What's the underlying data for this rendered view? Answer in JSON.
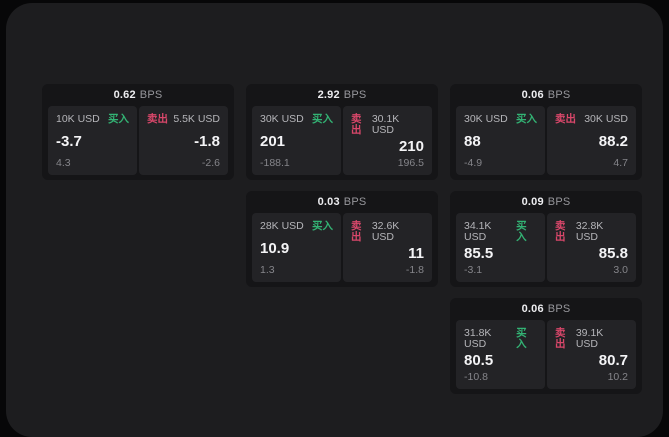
{
  "labels": {
    "bps_unit": "BPS",
    "buy": "买入",
    "sell": "卖出"
  },
  "colors": {
    "page_background": "#070708",
    "container_background": "#1d1d1f",
    "card_background": "#151517",
    "panel_background": "#232326",
    "buy_green": "#33b374",
    "sell_red": "#d9476a",
    "primary_text": "#f4f4f6",
    "secondary_text": "#b5b5b9",
    "muted_text": "#85858a"
  },
  "cards": [
    {
      "row": 1,
      "col": 1,
      "bps": "0.62",
      "buy": {
        "amount": "10K USD",
        "value": "-3.7",
        "delta": "4.3"
      },
      "sell": {
        "amount": "5.5K USD",
        "value": "-1.8",
        "delta": "-2.6"
      }
    },
    {
      "row": 1,
      "col": 2,
      "bps": "2.92",
      "buy": {
        "amount": "30K USD",
        "value": "201",
        "delta": "-188.1"
      },
      "sell": {
        "amount": "30.1K USD",
        "value": "210",
        "delta": "196.5"
      }
    },
    {
      "row": 1,
      "col": 3,
      "bps": "0.06",
      "buy": {
        "amount": "30K USD",
        "value": "88",
        "delta": "-4.9"
      },
      "sell": {
        "amount": "30K USD",
        "value": "88.2",
        "delta": "4.7"
      }
    },
    {
      "row": 2,
      "col": 2,
      "bps": "0.03",
      "buy": {
        "amount": "28K USD",
        "value": "10.9",
        "delta": "1.3"
      },
      "sell": {
        "amount": "32.6K USD",
        "value": "11",
        "delta": "-1.8"
      }
    },
    {
      "row": 2,
      "col": 3,
      "bps": "0.09",
      "buy": {
        "amount": "34.1K USD",
        "value": "85.5",
        "delta": "-3.1"
      },
      "sell": {
        "amount": "32.8K USD",
        "value": "85.8",
        "delta": "3.0"
      }
    },
    {
      "row": 3,
      "col": 3,
      "bps": "0.06",
      "buy": {
        "amount": "31.8K USD",
        "value": "80.5",
        "delta": "-10.8"
      },
      "sell": {
        "amount": "39.1K USD",
        "value": "80.7",
        "delta": "10.2"
      }
    }
  ]
}
